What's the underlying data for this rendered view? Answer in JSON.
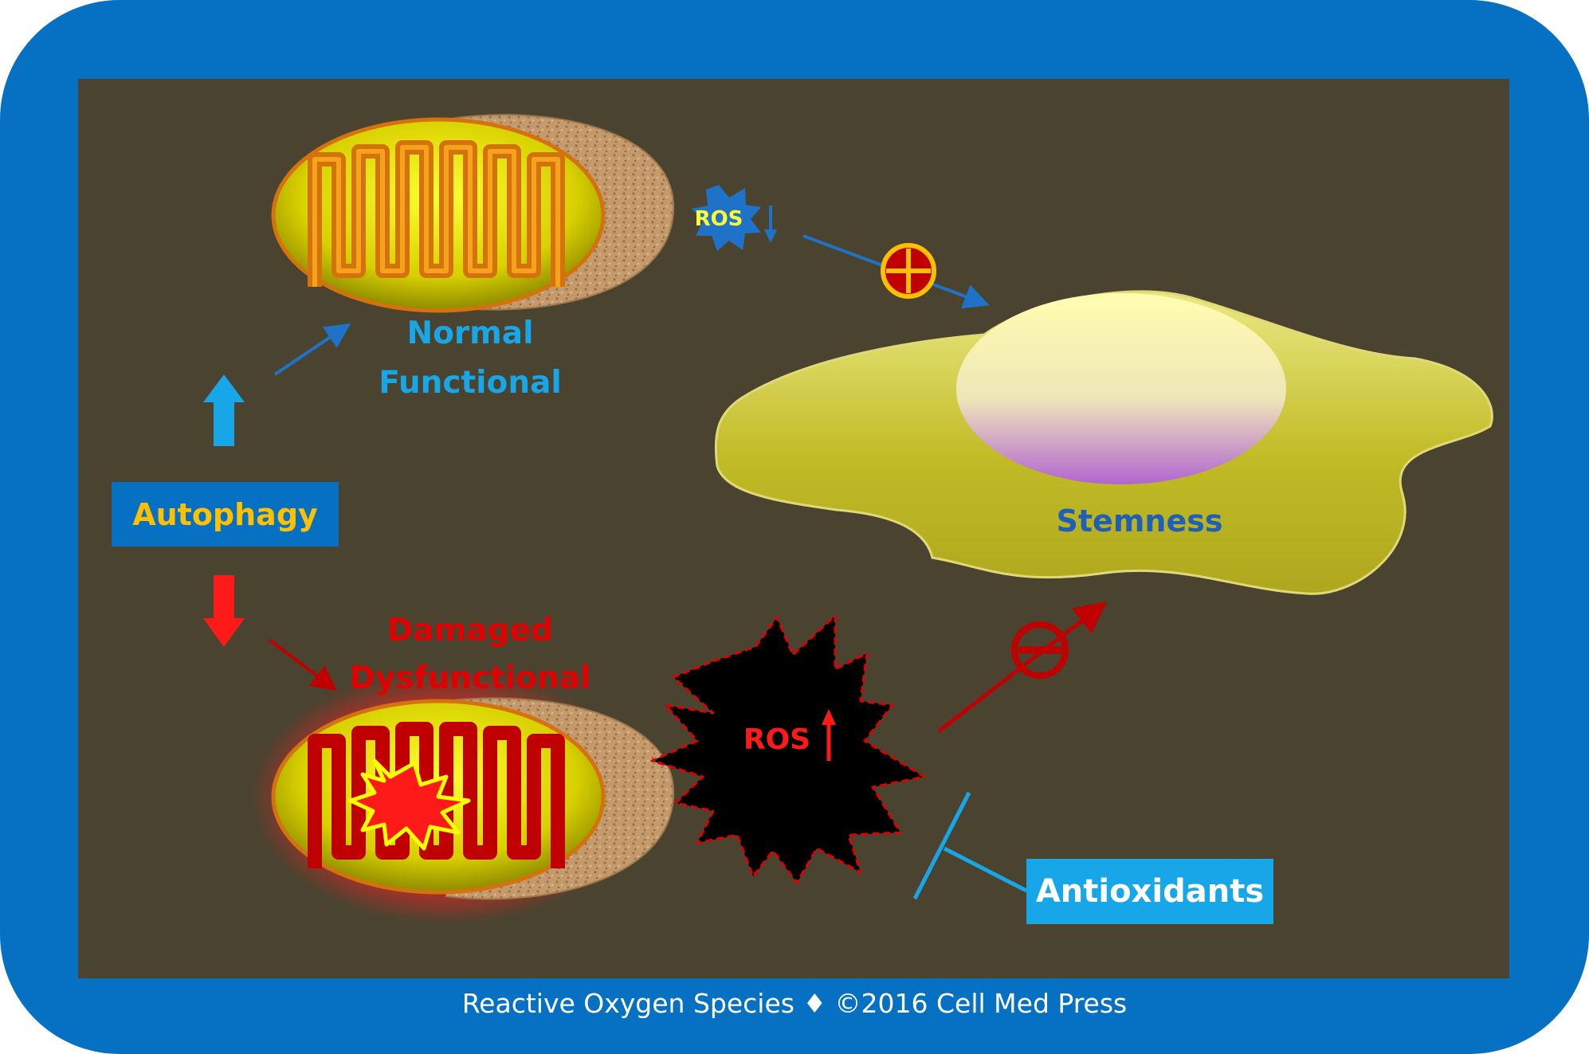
{
  "labels": {
    "normal_line1": "Normal",
    "normal_line2": "Functional",
    "damaged_line1": "Damaged",
    "damaged_line2": "Dysfunctional",
    "autophagy": "Autophagy",
    "antioxidants": "Antioxidants",
    "stemness": "Stemness",
    "ros_low": "ROS",
    "ros_high": "ROS"
  },
  "footer": "Reactive Oxygen Species ♦ ©2016 Cell Med Press",
  "colors": {
    "frame": "#0671c2",
    "panel": "#4a4330",
    "accent_blue": "#17a6e8",
    "autophagy_text": "#ffc000",
    "damaged_text": "#e00000",
    "stemness_text": "#1f5fb5",
    "mito_fill": "#c9c400",
    "cristae": "#d4720d"
  },
  "icons": {
    "up_arrow": "up-arrow-icon",
    "down_arrow": "down-arrow-icon",
    "plus_circle": "plus-circle-icon",
    "minus_circle": "minus-circle-icon",
    "explosion": "explosion-icon"
  }
}
